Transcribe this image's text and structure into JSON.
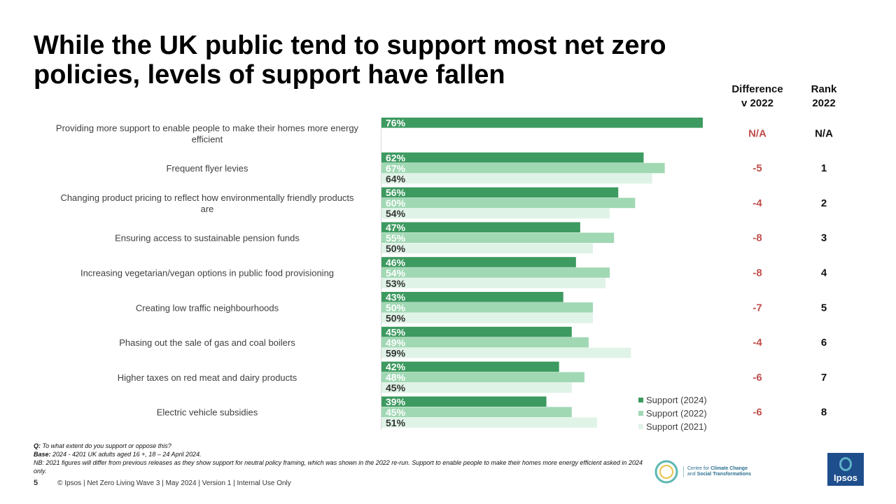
{
  "title": "While the UK public tend to support most net zero policies, levels of support have fallen",
  "columns": {
    "difference": [
      "Difference",
      "v 2022"
    ],
    "rank": [
      "Rank",
      "2022"
    ]
  },
  "colors": {
    "support_2024": "#3d9a60",
    "support_2022": "#a1d8b4",
    "support_2021": "#e0f3e7"
  },
  "chart_data": {
    "type": "bar",
    "orientation": "horizontal",
    "xlim": [
      0,
      100
    ],
    "legend_position": "bottom-right",
    "categories": [
      "Providing more support to enable people to make their homes more energy efficient",
      "Frequent flyer levies",
      "Changing product pricing to reflect how environmentally friendly products are",
      "Ensuring access to sustainable pension funds",
      "Increasing vegetarian/vegan options in public food provisioning",
      "Creating low traffic neighbourhoods",
      "Phasing out the sale of gas and coal boilers",
      "Higher taxes on red meat and dairy products",
      "Electric vehicle subsidies"
    ],
    "series": [
      {
        "name": "Support (2024)",
        "values": [
          76,
          62,
          56,
          47,
          46,
          43,
          45,
          42,
          39
        ]
      },
      {
        "name": "Support (2022)",
        "values": [
          null,
          67,
          60,
          55,
          54,
          50,
          49,
          48,
          45
        ]
      },
      {
        "name": "Support (2021)",
        "values": [
          null,
          64,
          54,
          50,
          53,
          50,
          59,
          45,
          51
        ]
      }
    ],
    "difference_v_2022": [
      "N/A",
      "-5",
      "-4",
      "-8",
      "-8",
      "-7",
      "-4",
      "-6",
      "-6"
    ],
    "rank_2022": [
      "N/A",
      "1",
      "2",
      "3",
      "4",
      "5",
      "6",
      "7",
      "8"
    ]
  },
  "notes": {
    "q_label": "Q:",
    "q_text": " To what extent do you support or oppose this?",
    "base_label": "Base:",
    "base_text": " 2024 - 4201 UK adults aged 16 +, 18 – 24 April 2024.",
    "nb_text": "NB: 2021 figures will differ from previous releases as they show support for neutral policy framing, which was shown in the 2022 re-run. Support to enable people to make their homes more energy efficient asked in 2024 only."
  },
  "footer": {
    "page_number": "5",
    "text": "© Ipsos | Net Zero Living Wave 3 | May 2024 | Version 1 | Internal Use Only"
  },
  "logos": {
    "cst_line1": "Centre for ",
    "cst_bold1": "Climate Change",
    "cst_line2_pre": "and ",
    "cst_bold2": "Social Transformations",
    "ipsos": "Ipsos"
  }
}
